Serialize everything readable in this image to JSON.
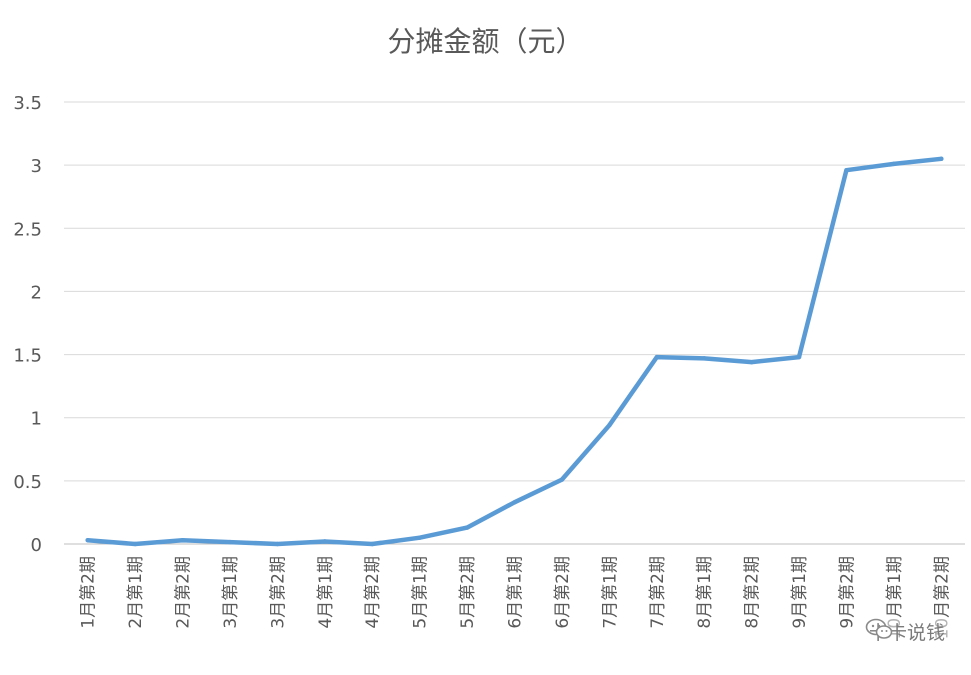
{
  "chart_data": {
    "type": "line",
    "title": "分摊金额（元）",
    "categories": [
      "1月第2期",
      "2月第1期",
      "2月第2期",
      "3月第1期",
      "3月第2期",
      "4月第1期",
      "4月第2期",
      "5月第1期",
      "5月第2期",
      "6月第1期",
      "6月第2期",
      "7月第1期",
      "7月第2期",
      "8月第1期",
      "8月第2期",
      "9月第1期",
      "9月第2期",
      "10月第1期",
      "10月第2期"
    ],
    "series": [
      {
        "values": [
          0.03,
          0.0,
          0.03,
          0.015,
          0.0,
          0.02,
          0.0,
          0.05,
          0.13,
          0.33,
          0.51,
          0.94,
          1.48,
          1.47,
          1.44,
          1.48,
          2.96,
          3.01,
          3.05
        ]
      }
    ],
    "ylim": [
      0,
      3.5
    ],
    "yticks": [
      "0",
      "0.5",
      "1",
      "1.5",
      "2",
      "2.5",
      "3",
      "3.5"
    ],
    "grid": true,
    "legend": "none",
    "line_color": "#5b9bd5",
    "grid_color": "#d9d9d9"
  },
  "watermark": {
    "icon": "wechat-icon",
    "text": "卡卡说钱"
  }
}
